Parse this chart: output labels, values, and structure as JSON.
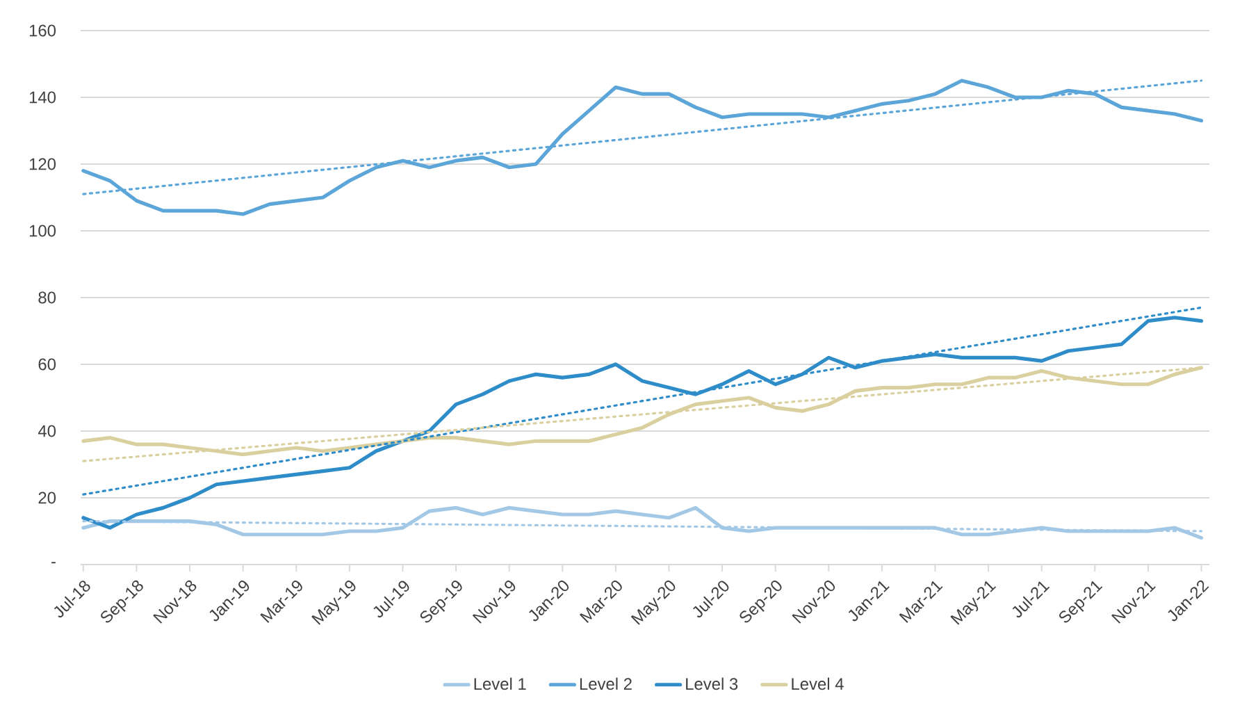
{
  "chart_data": {
    "type": "line",
    "categories": [
      "Jul-18",
      null,
      "Sep-18",
      null,
      "Nov-18",
      null,
      "Jan-19",
      null,
      "Mar-19",
      null,
      "May-19",
      null,
      "Jul-19",
      null,
      "Sep-19",
      null,
      "Nov-19",
      null,
      "Jan-20",
      null,
      "Mar-20",
      null,
      "May-20",
      null,
      "Jul-20",
      null,
      "Sep-20",
      null,
      "Nov-20",
      null,
      "Jan-21",
      null,
      "Mar-21",
      null,
      "May-21",
      null,
      "Jul-21",
      null,
      "Sep-21",
      null,
      "Nov-21",
      null,
      "Jan-22"
    ],
    "series": [
      {
        "name": "Level 1",
        "color": "#a3c8e6",
        "line_style": "solid",
        "values": [
          11,
          13,
          13,
          13,
          13,
          12,
          9,
          9,
          9,
          9,
          10,
          10,
          11,
          16,
          17,
          15,
          17,
          16,
          15,
          15,
          16,
          15,
          14,
          17,
          11,
          10,
          11,
          11,
          11,
          11,
          11,
          11,
          11,
          9,
          9,
          10,
          11,
          10,
          10,
          10,
          10,
          11,
          8
        ]
      },
      {
        "name": "Level 2",
        "color": "#5ba5d8",
        "line_style": "solid",
        "values": [
          118,
          115,
          109,
          106,
          106,
          106,
          105,
          108,
          109,
          110,
          115,
          119,
          121,
          119,
          121,
          122,
          119,
          120,
          129,
          136,
          143,
          141,
          141,
          137,
          134,
          135,
          135,
          135,
          134,
          136,
          138,
          139,
          141,
          145,
          143,
          140,
          140,
          142,
          141,
          137,
          136,
          135,
          133
        ]
      },
      {
        "name": "Level 3",
        "color": "#2e8cc9",
        "line_style": "solid",
        "values": [
          14,
          11,
          15,
          17,
          20,
          24,
          25,
          26,
          27,
          28,
          29,
          34,
          37,
          40,
          48,
          51,
          55,
          57,
          56,
          57,
          60,
          55,
          53,
          51,
          54,
          58,
          54,
          57,
          62,
          59,
          61,
          62,
          63,
          62,
          62,
          62,
          61,
          64,
          65,
          66,
          73,
          74,
          73
        ]
      },
      {
        "name": "Level 4",
        "color": "#dacf9e",
        "line_style": "solid",
        "values": [
          37,
          38,
          36,
          36,
          35,
          34,
          33,
          34,
          35,
          34,
          35,
          36,
          37,
          38,
          38,
          37,
          36,
          37,
          37,
          37,
          39,
          41,
          45,
          48,
          49,
          50,
          47,
          46,
          48,
          52,
          53,
          53,
          54,
          54,
          56,
          56,
          58,
          56,
          55,
          54,
          54,
          57,
          59
        ]
      },
      {
        "type": "line",
        "x": [
          "Jul-18",
          "Jan-22"
        ],
        "color": "#a3c8e6",
        "line_style": "dotted",
        "values": [
          13,
          10
        ]
      },
      {
        "type": "line",
        "x": [
          "Jul-18",
          "Jan-22"
        ],
        "color": "#5ba5d8",
        "line_style": "dotted",
        "values": [
          111,
          145
        ]
      },
      {
        "type": "line",
        "x": [
          "Jul-18",
          "Jan-22"
        ],
        "color": "#2e8cc9",
        "line_style": "dotted",
        "values": [
          21,
          77
        ]
      },
      {
        "type": "line",
        "x": [
          "Jul-18",
          "Jan-22"
        ],
        "color": "#dacf9e",
        "line_style": "dotted",
        "values": [
          31,
          59
        ]
      }
    ],
    "ylim": [
      0,
      160
    ],
    "yticks": [
      {
        "value": 0,
        "label": "-"
      },
      20,
      40,
      60,
      80,
      100,
      120,
      140,
      160
    ],
    "grid": "y",
    "legend": "bottom"
  }
}
